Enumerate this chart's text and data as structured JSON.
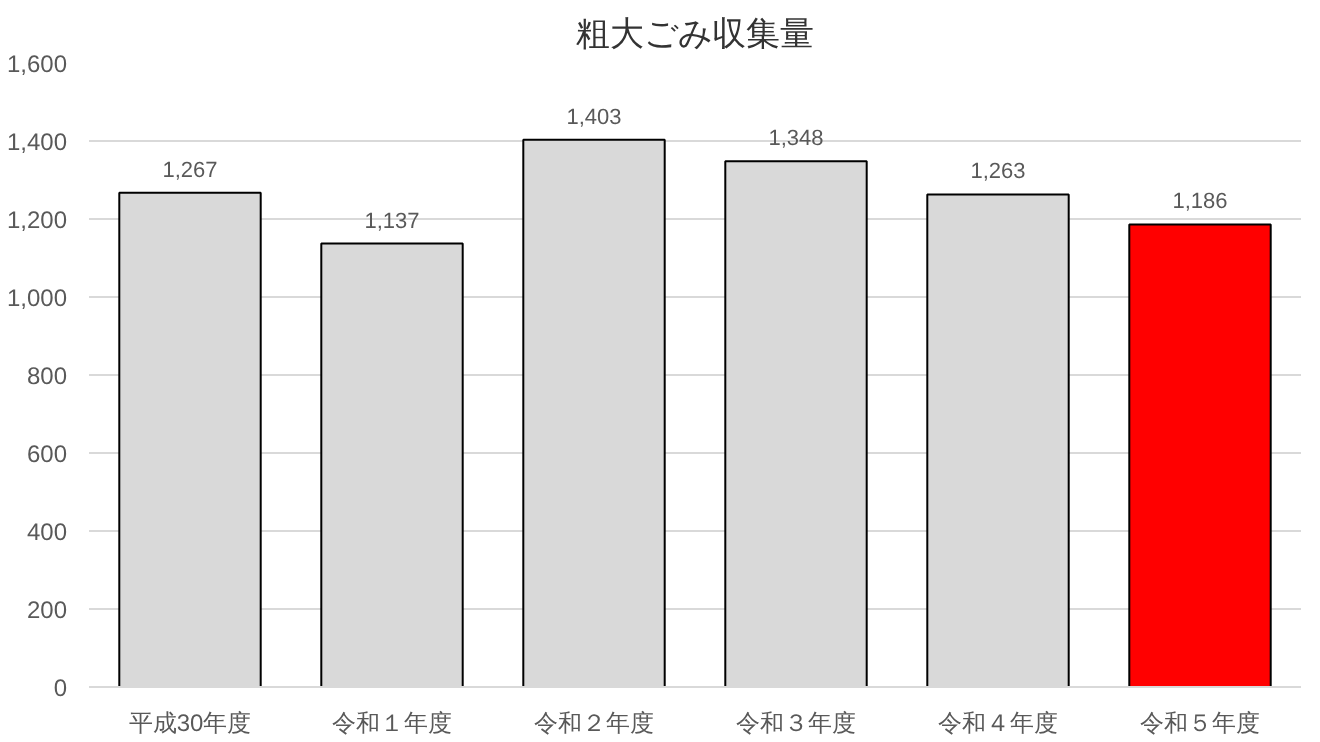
{
  "chart_data": {
    "type": "bar",
    "title": "粗大ごみ収集量",
    "categories": [
      "平成30年度",
      "令和１年度",
      "令和２年度",
      "令和３年度",
      "令和４年度",
      "令和５年度"
    ],
    "values": [
      1267,
      1137,
      1403,
      1348,
      1263,
      1186
    ],
    "colors": [
      "#d9d9d9",
      "#d9d9d9",
      "#d9d9d9",
      "#d9d9d9",
      "#d9d9d9",
      "#ff0000"
    ],
    "value_labels": [
      "1,267",
      "1,137",
      "1,403",
      "1,348",
      "1,263",
      "1,186"
    ],
    "ylim": [
      0,
      1600
    ],
    "yticks": [
      {
        "value": 0,
        "label": "0"
      },
      {
        "value": 200,
        "label": "200"
      },
      {
        "value": 400,
        "label": "400"
      },
      {
        "value": 600,
        "label": "600"
      },
      {
        "value": 800,
        "label": "800"
      },
      {
        "value": 1000,
        "label": "1,000"
      },
      {
        "value": 1200,
        "label": "1,200"
      },
      {
        "value": 1400,
        "label": "1,400"
      },
      {
        "value": 1600,
        "label": "1,600"
      }
    ],
    "grid": "y"
  }
}
